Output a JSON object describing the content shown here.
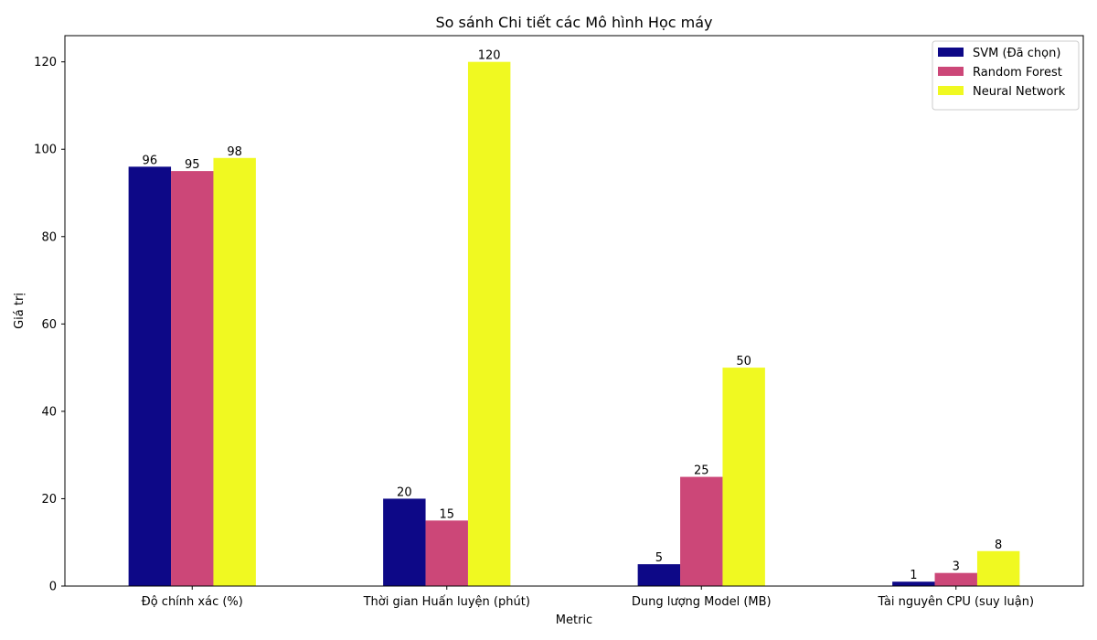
{
  "chart_data": {
    "type": "bar",
    "title": "So sánh Chi tiết các Mô hình Học máy",
    "xlabel": "Metric",
    "ylabel": "Giá trị",
    "categories": [
      "Độ chính xác (%)",
      "Thời gian Huấn luyện (phút)",
      "Dung lượng Model (MB)",
      "Tài nguyên CPU (suy luận)"
    ],
    "series": [
      {
        "name": "SVM (Đã chọn)",
        "color": "#0d0887",
        "values": [
          96,
          20,
          5,
          1
        ]
      },
      {
        "name": "Random Forest",
        "color": "#cc4778",
        "values": [
          95,
          15,
          25,
          3
        ]
      },
      {
        "name": "Neural Network",
        "color": "#f0f921",
        "values": [
          98,
          120,
          50,
          8
        ]
      }
    ],
    "ylim": [
      0,
      126
    ],
    "yticks": [
      0,
      20,
      40,
      60,
      80,
      100,
      120
    ],
    "grid": false,
    "legend_position": "top-right",
    "data_labels": true
  }
}
